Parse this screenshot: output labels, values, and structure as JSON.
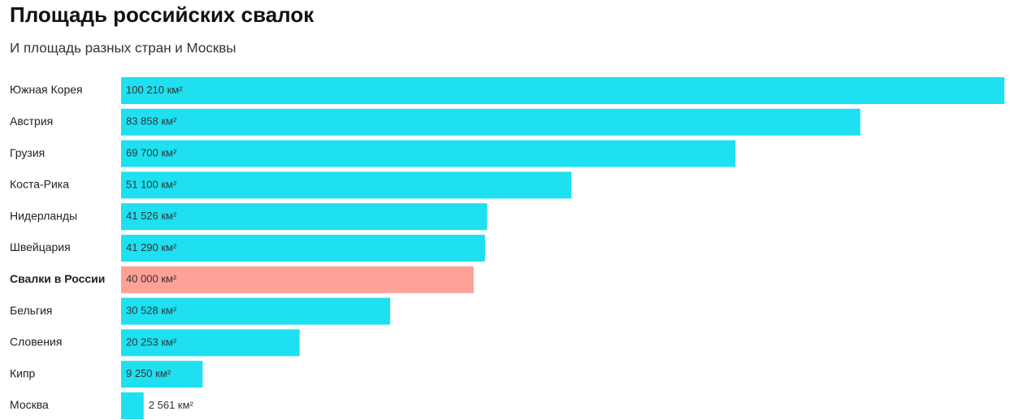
{
  "chart_data": {
    "type": "hbar",
    "title": "Площадь российских свалок",
    "subtitle": "И площадь разных стран и Москвы",
    "categories": [
      "Южная Корея",
      "Австрия",
      "Грузия",
      "Коста-Рика",
      "Нидерланды",
      "Швейцария",
      "Свалки в России",
      "Бельгия",
      "Словения",
      "Кипр",
      "Москва"
    ],
    "values": [
      100210,
      83858,
      69700,
      51100,
      41526,
      41290,
      40000,
      30528,
      20253,
      9250,
      2561
    ],
    "value_labels": [
      "100 210 км²",
      "83 858 км²",
      "69 700 км²",
      "51 100 км²",
      "41 526 км²",
      "41 290 км²",
      "40 000 км²",
      "30 528 км²",
      "20 253 км²",
      "9 250 км²",
      "2 561 км²"
    ],
    "color": "#1ee0f0",
    "highlight_index": 6,
    "highlight_color": "#ffa197",
    "xlim": [
      0,
      100210
    ]
  }
}
